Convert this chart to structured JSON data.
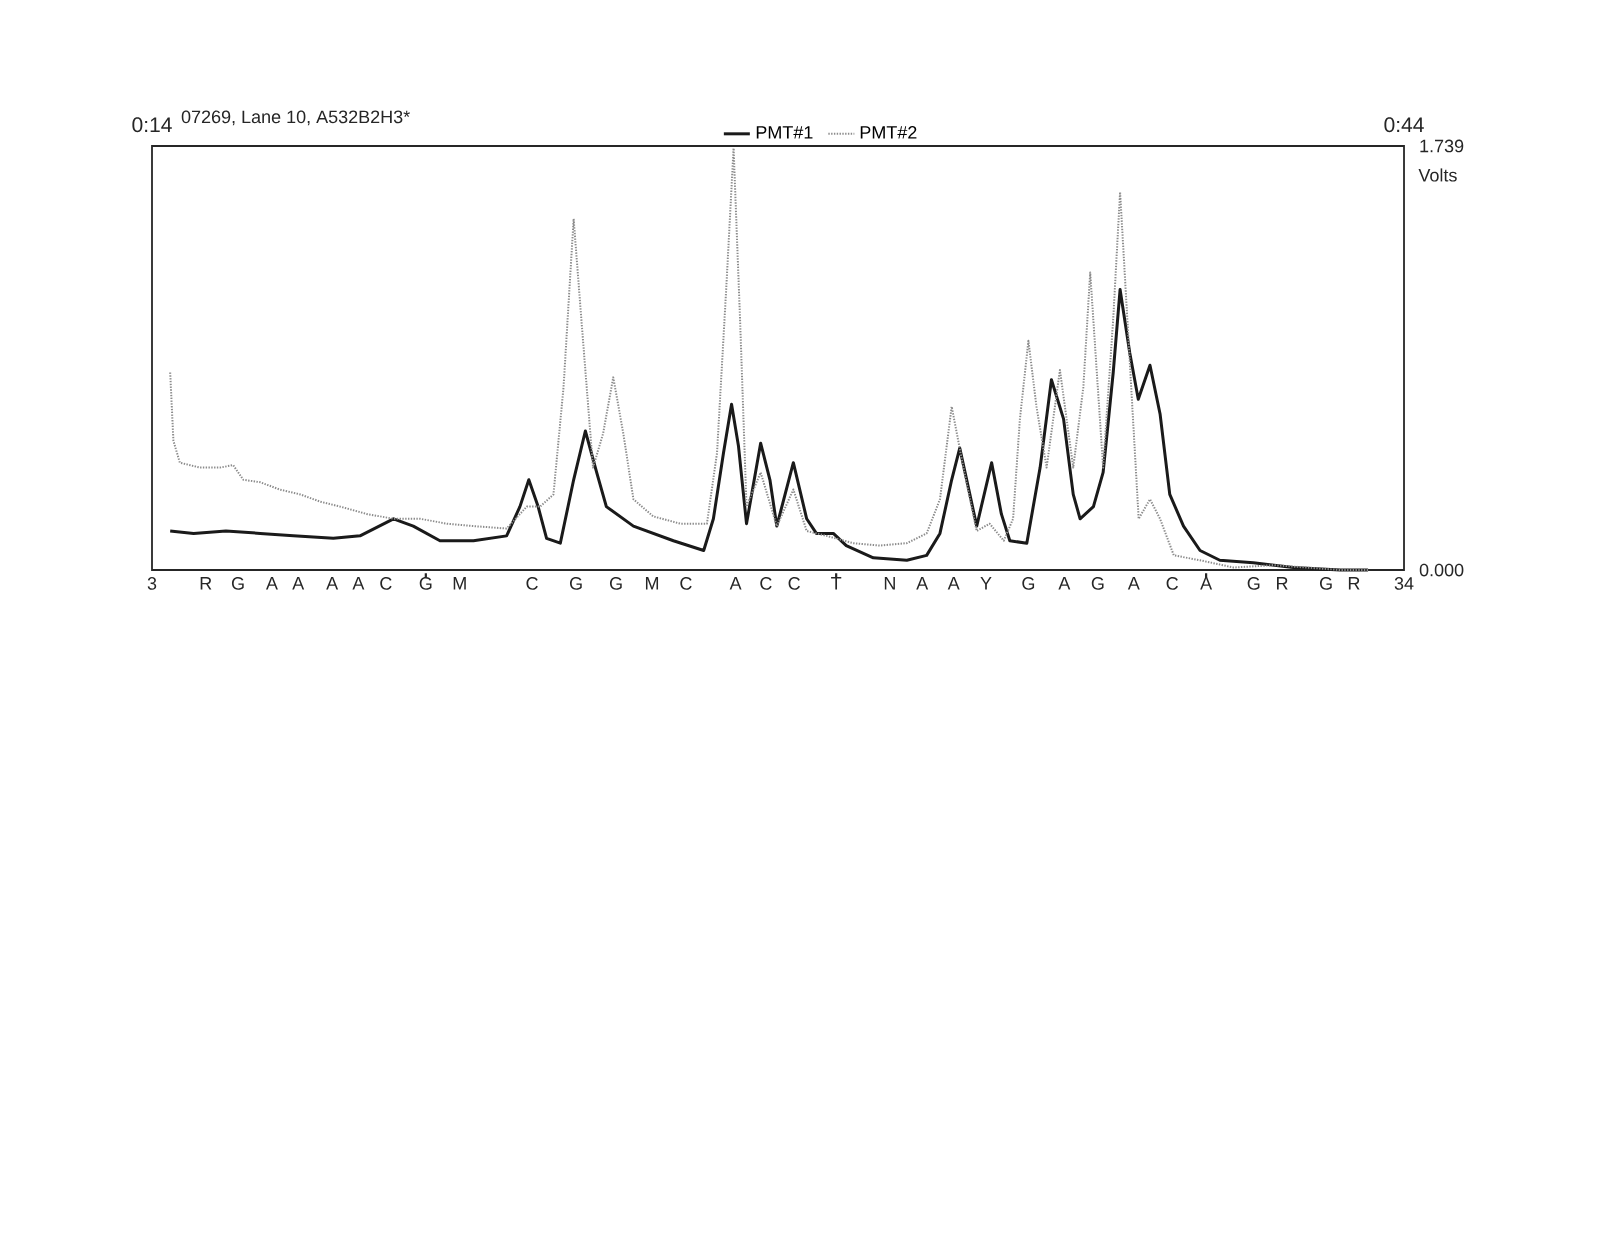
{
  "chart_data": {
    "type": "line",
    "title": "07269, Lane 10, A532B2H3*",
    "ylabel": "Volts",
    "xlim": [
      3,
      34
    ],
    "ylim": [
      0,
      1.739
    ],
    "xticks": [
      3,
      {
        "value": 4.33,
        "label": "R"
      },
      {
        "value": 5.13,
        "label": "G"
      },
      {
        "value": 5.97,
        "label": "A"
      },
      {
        "value": 6.62,
        "label": "A"
      },
      {
        "value": 7.46,
        "label": "A"
      },
      {
        "value": 8.11,
        "label": "A"
      },
      {
        "value": 8.79,
        "label": "C"
      },
      {
        "value": 9.78,
        "label": "G"
      },
      {
        "value": 10.62,
        "label": "M"
      },
      {
        "value": 12.41,
        "label": "C"
      },
      {
        "value": 13.5,
        "label": "G"
      },
      {
        "value": 14.49,
        "label": "G"
      },
      {
        "value": 15.38,
        "label": "M"
      },
      {
        "value": 16.22,
        "label": "C"
      },
      {
        "value": 17.45,
        "label": "A"
      },
      {
        "value": 18.2,
        "label": "C"
      },
      {
        "value": 18.9,
        "label": "C"
      },
      {
        "value": 19.94,
        "label": "T"
      },
      {
        "value": 21.27,
        "label": "N"
      },
      {
        "value": 22.07,
        "label": "A"
      },
      {
        "value": 22.85,
        "label": "A"
      },
      {
        "value": 23.65,
        "label": "Y"
      },
      {
        "value": 24.7,
        "label": "G"
      },
      {
        "value": 25.59,
        "label": "A"
      },
      {
        "value": 26.42,
        "label": "G"
      },
      {
        "value": 27.31,
        "label": "A"
      },
      {
        "value": 28.26,
        "label": "C"
      },
      {
        "value": 29.1,
        "label": "A"
      },
      {
        "value": 30.28,
        "label": "G"
      },
      {
        "value": 30.98,
        "label": "R"
      },
      {
        "value": 32.07,
        "label": "G"
      },
      {
        "value": 32.76,
        "label": "R"
      },
      34,
      {
        "value": 9.78,
        "label": null
      },
      {
        "value": 19.94,
        "label": null
      },
      {
        "value": 29.1,
        "label": null
      }
    ],
    "x2lim": [
      0.2333,
      0.7333
    ],
    "x2ticks": [
      {
        "value": 0.2333,
        "label": "0:14"
      },
      {
        "value": 0.7333,
        "label": "0:44"
      }
    ],
    "yticks": [
      {
        "value": 0,
        "label": "0.000"
      },
      1.739
    ],
    "legend": "top",
    "series": [
      {
        "name": "PMT#1",
        "color": "#1a1a1a",
        "line_style": "solid",
        "x": [
          3.45,
          4.03,
          4.83,
          5.68,
          6.5,
          7.49,
          8.15,
          8.98,
          9.47,
          10.13,
          10.96,
          11.78,
          12.11,
          12.33,
          12.56,
          12.77,
          13.11,
          13.44,
          13.73,
          14.01,
          14.25,
          14.92,
          15.91,
          16.66,
          16.9,
          17.15,
          17.35,
          17.52,
          17.72,
          18.07,
          18.3,
          18.47,
          18.88,
          19.21,
          19.45,
          19.87,
          20.19,
          20.86,
          21.69,
          22.18,
          22.51,
          22.8,
          23.0,
          23.25,
          23.42,
          23.79,
          24.03,
          24.24,
          24.66,
          24.99,
          25.27,
          25.57,
          25.81,
          25.98,
          26.31,
          26.55,
          26.8,
          26.97,
          27.21,
          27.42,
          27.71,
          27.96,
          28.2,
          28.54,
          28.95,
          29.44,
          30.27,
          31.26,
          32.42,
          33.11
        ],
        "values": [
          0.16,
          0.15,
          0.16,
          0.15,
          0.14,
          0.13,
          0.14,
          0.21,
          0.18,
          0.12,
          0.12,
          0.14,
          0.26,
          0.37,
          0.26,
          0.13,
          0.11,
          0.37,
          0.57,
          0.4,
          0.26,
          0.18,
          0.12,
          0.08,
          0.21,
          0.48,
          0.68,
          0.51,
          0.19,
          0.52,
          0.37,
          0.18,
          0.44,
          0.21,
          0.15,
          0.15,
          0.1,
          0.05,
          0.04,
          0.06,
          0.15,
          0.37,
          0.5,
          0.31,
          0.18,
          0.44,
          0.23,
          0.12,
          0.11,
          0.42,
          0.78,
          0.62,
          0.31,
          0.21,
          0.26,
          0.4,
          0.81,
          1.15,
          0.89,
          0.7,
          0.84,
          0.64,
          0.31,
          0.18,
          0.08,
          0.04,
          0.03,
          0.01,
          0,
          0
        ]
      },
      {
        "name": "PMT#2",
        "color": "#8c8c8c",
        "line_style": "dotted",
        "x": [
          3.45,
          3.53,
          3.69,
          4.19,
          4.68,
          5.01,
          5.26,
          5.68,
          6.16,
          6.67,
          7.17,
          7.66,
          8.31,
          8.98,
          9.64,
          10.3,
          10.96,
          11.78,
          12.28,
          12.61,
          12.94,
          13.19,
          13.44,
          13.63,
          13.92,
          14.17,
          14.42,
          14.67,
          14.92,
          15.41,
          16.08,
          16.74,
          16.99,
          17.22,
          17.4,
          17.56,
          17.72,
          18.07,
          18.47,
          18.88,
          19.21,
          19.7,
          20.36,
          21.02,
          21.69,
          22.18,
          22.51,
          22.8,
          23.09,
          23.42,
          23.74,
          24.09,
          24.32,
          24.49,
          24.7,
          24.9,
          25.15,
          25.48,
          25.81,
          26.06,
          26.23,
          26.55,
          26.8,
          26.97,
          27.17,
          27.43,
          27.71,
          27.96,
          28.3,
          28.95,
          29.78,
          30.76,
          31.59,
          32.42,
          33.11
        ],
        "values": [
          0.81,
          0.53,
          0.44,
          0.42,
          0.42,
          0.43,
          0.37,
          0.36,
          0.33,
          0.31,
          0.28,
          0.26,
          0.23,
          0.21,
          0.21,
          0.19,
          0.18,
          0.17,
          0.26,
          0.26,
          0.31,
          0.75,
          1.44,
          1.03,
          0.42,
          0.56,
          0.79,
          0.56,
          0.29,
          0.22,
          0.19,
          0.19,
          0.48,
          1.16,
          1.73,
          1.03,
          0.26,
          0.4,
          0.18,
          0.33,
          0.16,
          0.14,
          0.11,
          0.1,
          0.11,
          0.15,
          0.29,
          0.67,
          0.42,
          0.16,
          0.19,
          0.12,
          0.21,
          0.62,
          0.94,
          0.67,
          0.42,
          0.82,
          0.42,
          0.75,
          1.22,
          0.42,
          1.03,
          1.55,
          0.97,
          0.21,
          0.29,
          0.21,
          0.06,
          0.04,
          0.01,
          0.02,
          0.01,
          0,
          0
        ]
      }
    ]
  }
}
